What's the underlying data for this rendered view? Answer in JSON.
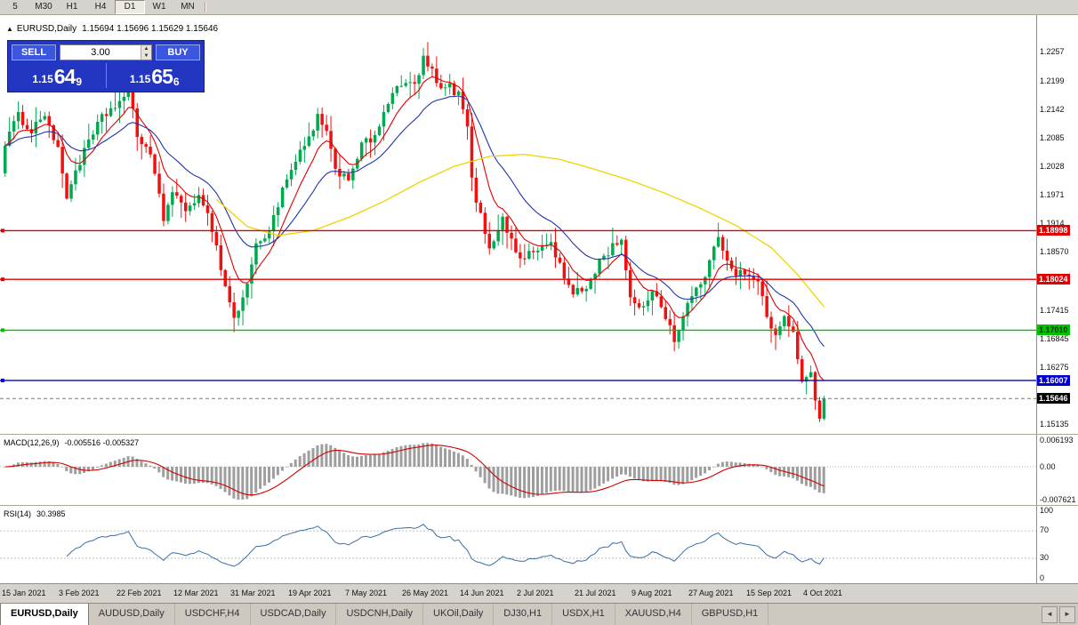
{
  "toolbar": {
    "timeframes": [
      "5",
      "M30",
      "H1",
      "H4",
      "D1",
      "W1",
      "MN"
    ],
    "active": "D1"
  },
  "chart_header": {
    "collapse_icon": "▲",
    "symbol_period": "EURUSD,Daily",
    "ohlc": "1.15694 1.15696 1.15629 1.15646"
  },
  "one_click": {
    "sell_label": "SELL",
    "buy_label": "BUY",
    "volume": "3.00",
    "sell_price": {
      "prefix": "1.15",
      "big": "64",
      "sup": "9"
    },
    "buy_price": {
      "prefix": "1.15",
      "big": "65",
      "sup": "6"
    }
  },
  "colors": {
    "candle_up": "#00A94F",
    "candle_down": "#F01010",
    "ma_fast": "#E00000",
    "ma_mid": "#2233AA",
    "ma_slow": "#EDD500",
    "macd_hist": "#9E9E9E",
    "macd_signal": "#D00000",
    "rsi_line": "#3A6EA5",
    "current_line": "#777777"
  },
  "price_axis": {
    "labels": [
      {
        "text": "1.2257",
        "price": 1.2257
      },
      {
        "text": "1.2199",
        "price": 1.2199
      },
      {
        "text": "1.2142",
        "price": 1.2142
      },
      {
        "text": "1.2085",
        "price": 1.2085
      },
      {
        "text": "1.2028",
        "price": 1.2028
      },
      {
        "text": "1.1971",
        "price": 1.1971
      },
      {
        "text": "1.1914",
        "price": 1.1914
      },
      {
        "text": "1.18570",
        "price": 1.1857
      },
      {
        "text": "1.17415",
        "price": 1.17415
      },
      {
        "text": "1.16845",
        "price": 1.16845
      },
      {
        "text": "1.16275",
        "price": 1.16275
      },
      {
        "text": "1.15135",
        "price": 1.15135
      }
    ]
  },
  "chart_data": {
    "type": "candlestick",
    "symbol": "EURUSD",
    "period": "Daily",
    "num_candles": 187,
    "price_range_view": [
      1.1494,
      1.233
    ],
    "last_close": 1.15646,
    "close_anchors": [
      [
        0,
        1.2077
      ],
      [
        3,
        1.2128
      ],
      [
        6,
        1.21
      ],
      [
        9,
        1.2135
      ],
      [
        12,
        1.2058
      ],
      [
        14,
        1.1968
      ],
      [
        16,
        1.202
      ],
      [
        19,
        1.2075
      ],
      [
        22,
        1.2125
      ],
      [
        25,
        1.215
      ],
      [
        27,
        1.2165
      ],
      [
        28,
        1.218
      ],
      [
        30,
        1.209
      ],
      [
        33,
        1.2055
      ],
      [
        36,
        1.192
      ],
      [
        38,
        1.1985
      ],
      [
        41,
        1.193
      ],
      [
        44,
        1.1978
      ],
      [
        47,
        1.1905
      ],
      [
        50,
        1.1788
      ],
      [
        52,
        1.1725
      ],
      [
        54,
        1.1762
      ],
      [
        57,
        1.1868
      ],
      [
        60,
        1.1902
      ],
      [
        63,
        1.1978
      ],
      [
        66,
        1.2038
      ],
      [
        69,
        1.2082
      ],
      [
        71,
        1.2128
      ],
      [
        73,
        1.209
      ],
      [
        75,
        1.2022
      ],
      [
        78,
        1.2005
      ],
      [
        81,
        1.2072
      ],
      [
        84,
        1.2082
      ],
      [
        86,
        1.2142
      ],
      [
        88,
        1.2172
      ],
      [
        91,
        1.2196
      ],
      [
        93,
        1.2188
      ],
      [
        95,
        1.2242
      ],
      [
        97,
        1.2215
      ],
      [
        99,
        1.2178
      ],
      [
        101,
        1.2188
      ],
      [
        103,
        1.217
      ],
      [
        105,
        1.2108
      ],
      [
        106,
        1.1998
      ],
      [
        108,
        1.1928
      ],
      [
        110,
        1.1868
      ],
      [
        113,
        1.1922
      ],
      [
        116,
        1.1858
      ],
      [
        118,
        1.1846
      ],
      [
        121,
        1.1862
      ],
      [
        124,
        1.1876
      ],
      [
        127,
        1.1806
      ],
      [
        129,
        1.1772
      ],
      [
        132,
        1.1786
      ],
      [
        135,
        1.1838
      ],
      [
        138,
        1.1868
      ],
      [
        140,
        1.1886
      ],
      [
        142,
        1.1762
      ],
      [
        144,
        1.1738
      ],
      [
        147,
        1.1782
      ],
      [
        150,
        1.1732
      ],
      [
        152,
        1.1682
      ],
      [
        155,
        1.1752
      ],
      [
        158,
        1.1796
      ],
      [
        160,
        1.1832
      ],
      [
        162,
        1.1893
      ],
      [
        164,
        1.1842
      ],
      [
        166,
        1.1818
      ],
      [
        168,
        1.1812
      ],
      [
        171,
        1.1796
      ],
      [
        173,
        1.1732
      ],
      [
        175,
        1.1688
      ],
      [
        177,
        1.1722
      ],
      [
        179,
        1.1692
      ],
      [
        181,
        1.1602
      ],
      [
        183,
        1.1622
      ],
      [
        184,
        1.1562
      ],
      [
        185,
        1.1532
      ],
      [
        186,
        1.15646
      ]
    ],
    "moving_averages": [
      {
        "name": "ma-fast",
        "type": "EMA",
        "period": 8
      },
      {
        "name": "ma-mid",
        "type": "EMA",
        "period": 20
      },
      {
        "name": "ma-slow",
        "type": "anchored",
        "anchors": [
          [
            48,
            1.1962
          ],
          [
            55,
            1.1908
          ],
          [
            62,
            1.189
          ],
          [
            70,
            1.19
          ],
          [
            78,
            1.1926
          ],
          [
            86,
            1.1958
          ],
          [
            94,
            1.1996
          ],
          [
            102,
            1.2028
          ],
          [
            110,
            1.2048
          ],
          [
            118,
            1.2052
          ],
          [
            126,
            1.2042
          ],
          [
            134,
            1.2022
          ],
          [
            142,
            1.2
          ],
          [
            150,
            1.1974
          ],
          [
            158,
            1.1944
          ],
          [
            166,
            1.191
          ],
          [
            174,
            1.1866
          ],
          [
            180,
            1.1812
          ],
          [
            186,
            1.1748
          ]
        ]
      }
    ],
    "hlines": [
      {
        "price": 1.18998,
        "label": "1.18998",
        "color": "#E00000",
        "text": "#ffffff"
      },
      {
        "price": 1.18024,
        "label": "1.18024",
        "color": "#E00000",
        "text": "#ffffff"
      },
      {
        "price": 1.1701,
        "label": "1.17010",
        "color": "#00C000",
        "text": "#003300"
      },
      {
        "price": 1.16007,
        "label": "1.16007",
        "color": "#0000D0",
        "text": "#ffffff"
      }
    ],
    "current_price": {
      "value": 1.15646,
      "label": "1.15646",
      "tag_bg": "#000000",
      "tag_text": "#ffffff"
    }
  },
  "macd": {
    "title": "MACD(12,26,9)",
    "values_text": "-0.005516 -0.005327",
    "macd_value": -0.005516,
    "signal_value": -0.005327,
    "axis_labels": [
      {
        "text": "0.006193",
        "value": 0.006193
      },
      {
        "text": "0.00",
        "value": 0
      },
      {
        "text": "-0.007621",
        "value": -0.007621
      }
    ],
    "range": [
      -0.007621,
      0.006193
    ]
  },
  "rsi": {
    "title": "RSI(14)",
    "value_text": "30.3985",
    "last_value": 30.3985,
    "levels": [
      70,
      30
    ],
    "axis_labels": [
      {
        "text": "100",
        "value": 100
      },
      {
        "text": "70",
        "value": 70
      },
      {
        "text": "30",
        "value": 30
      },
      {
        "text": "0",
        "value": 0
      }
    ]
  },
  "date_axis": {
    "labels": [
      "15 Jan 2021",
      "3 Feb 2021",
      "22 Feb 2021",
      "12 Mar 2021",
      "31 Mar 2021",
      "19 Apr 2021",
      "7 May 2021",
      "26 May 2021",
      "14 Jun 2021",
      "2 Jul 2021",
      "21 Jul 2021",
      "9 Aug 2021",
      "27 Aug 2021",
      "15 Sep 2021",
      "4 Oct 2021"
    ]
  },
  "tabs": {
    "items": [
      "EURUSD,Daily",
      "AUDUSD,Daily",
      "USDCHF,H4",
      "USDCAD,Daily",
      "USDCNH,Daily",
      "UKOil,Daily",
      "DJ30,H1",
      "USDX,H1",
      "XAUUSD,H4",
      "GBPUSD,H1"
    ],
    "active_index": 0,
    "scroll_left_icon": "◄",
    "scroll_right_icon": "►"
  }
}
